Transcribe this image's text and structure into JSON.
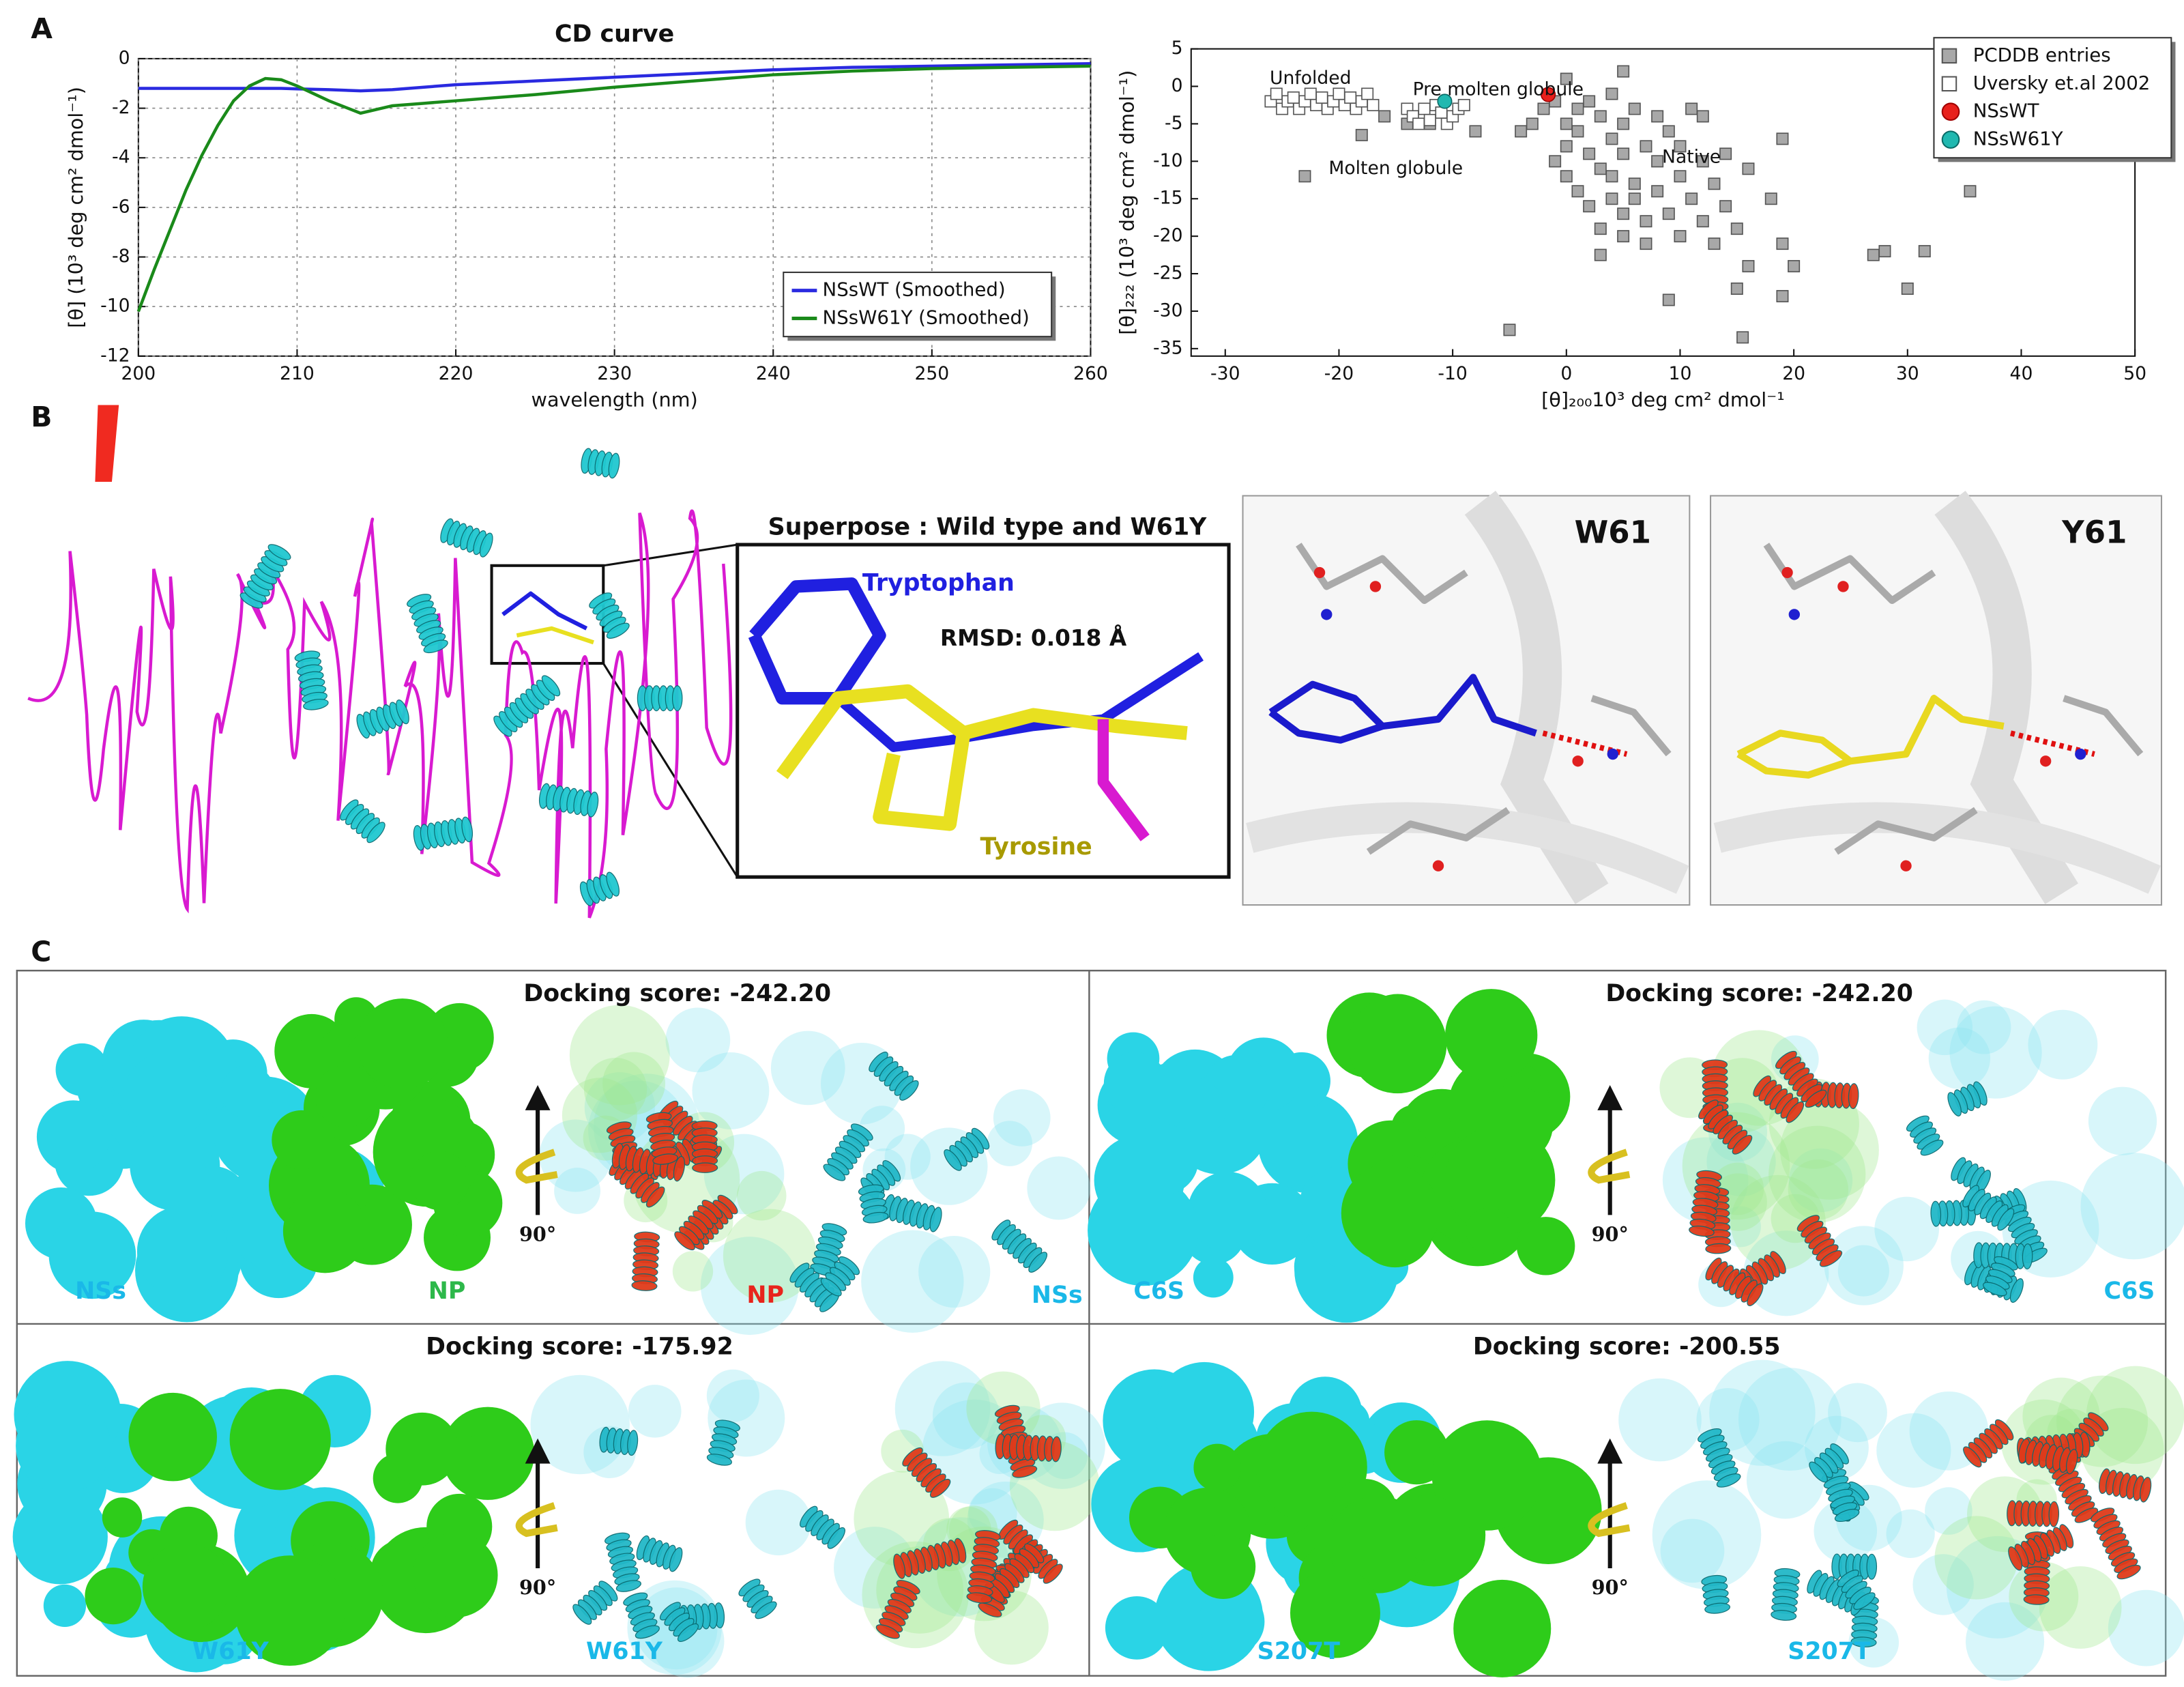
{
  "panel_labels": [
    "A",
    "B",
    "C"
  ],
  "chart_data": [
    {
      "type": "line",
      "title": "CD curve",
      "xlabel": "wavelength (nm)",
      "ylabel": "[θ] (10³ deg cm² dmol⁻¹)",
      "x": [
        200,
        201,
        202,
        203,
        204,
        205,
        206,
        207,
        208,
        209,
        210,
        212,
        214,
        216,
        218,
        220,
        225,
        230,
        235,
        240,
        245,
        250,
        255,
        260
      ],
      "series": [
        {
          "name": "NSsWT (Smoothed)",
          "color": "#2a2ae0",
          "values": [
            -1.2,
            -1.2,
            -1.2,
            -1.2,
            -1.2,
            -1.2,
            -1.2,
            -1.2,
            -1.2,
            -1.2,
            -1.22,
            -1.25,
            -1.3,
            -1.25,
            -1.15,
            -1.05,
            -0.9,
            -0.75,
            -0.6,
            -0.45,
            -0.35,
            -0.3,
            -0.25,
            -0.2
          ]
        },
        {
          "name": "NSsW61Y (Smoothed)",
          "color": "#1a8a1a",
          "values": [
            -10.2,
            -8.5,
            -6.9,
            -5.3,
            -3.9,
            -2.7,
            -1.7,
            -1.1,
            -0.8,
            -0.85,
            -1.1,
            -1.7,
            -2.2,
            -1.9,
            -1.8,
            -1.7,
            -1.45,
            -1.15,
            -0.9,
            -0.65,
            -0.5,
            -0.4,
            -0.35,
            -0.3
          ]
        }
      ],
      "xlim": [
        200,
        260
      ],
      "xticks": [
        200,
        210,
        220,
        230,
        240,
        250,
        260
      ],
      "ylim": [
        -12,
        0
      ],
      "yticks": [
        -12,
        -10,
        -8,
        -6,
        -4,
        -2,
        0
      ],
      "grid": true,
      "legend": "lower right"
    },
    {
      "type": "scatter",
      "xlabel": "[θ]₂₀₀10³ deg cm² dmol⁻¹",
      "ylabel": "[θ]₂₂₂ (10³ deg cm² dmol⁻¹)",
      "series": [
        {
          "name": "PCDDB entries",
          "color": "#a8a8a8",
          "edgecolor": "#555555",
          "marker": "square",
          "x": [
            -23,
            -18,
            -16,
            -14,
            -12,
            -8,
            -5,
            -4,
            -3,
            -2,
            -1,
            -1,
            0,
            0,
            0,
            0,
            1,
            1,
            1,
            2,
            2,
            2,
            3,
            3,
            3,
            3,
            4,
            4,
            4,
            4,
            5,
            5,
            5,
            5,
            5,
            6,
            6,
            6,
            7,
            7,
            7,
            8,
            8,
            8,
            9,
            9,
            9,
            10,
            10,
            10,
            11,
            11,
            12,
            12,
            12,
            13,
            13,
            14,
            14,
            15,
            15,
            15.5,
            16,
            16,
            18,
            19,
            19,
            19,
            20,
            27,
            28,
            30,
            31.5,
            35.5
          ],
          "y": [
            -12,
            -6.5,
            -4,
            -5,
            -5,
            -6,
            -32.5,
            -6,
            -5,
            -3,
            -2,
            -10,
            1,
            -5,
            -8,
            -12,
            -3,
            -6,
            -14,
            -2,
            -9,
            -16,
            -4,
            -11,
            -19,
            -22.5,
            -1,
            -7,
            -12,
            -15,
            2,
            -5,
            -9,
            -17,
            -20,
            -3,
            -13,
            -15,
            -8,
            -18,
            -21,
            -10,
            -14,
            -4,
            -28.5,
            -6,
            -17,
            -12,
            -20,
            -8,
            -3,
            -15,
            -4,
            -10,
            -18,
            -13,
            -21,
            -9,
            -16,
            -19,
            -27,
            -33.5,
            -11,
            -24,
            -15,
            -21,
            -28,
            -7,
            -24,
            -22.5,
            -22,
            -27,
            -22,
            -14
          ]
        },
        {
          "name": "Uversky et.al 2002",
          "color": "#ffffff",
          "edgecolor": "#555555",
          "marker": "square",
          "x": [
            -26,
            -25.5,
            -25,
            -24.5,
            -24,
            -23.5,
            -23,
            -22.5,
            -22,
            -21.5,
            -21,
            -20.5,
            -20,
            -19.5,
            -19,
            -18.5,
            -18,
            -17.5,
            -17,
            -14,
            -13.5,
            -13,
            -12.5,
            -12,
            -11.5,
            -11,
            -10.5,
            -10,
            -9.5,
            -9
          ],
          "y": [
            -2,
            -1,
            -3,
            -2,
            -1.5,
            -3,
            -2,
            -1,
            -2.5,
            -1.5,
            -3,
            -2,
            -1,
            -2.5,
            -1.5,
            -3,
            -2,
            -1,
            -2.5,
            -3,
            -4,
            -5,
            -3,
            -4.5,
            -2.5,
            -3.5,
            -5,
            -4,
            -3,
            -2.5
          ]
        },
        {
          "name": "NSsWT",
          "color": "#e8201c",
          "edgecolor": "#a00000",
          "marker": "circle",
          "x": [
            -1.6
          ],
          "y": [
            -1.1
          ]
        },
        {
          "name": "NSsW61Y",
          "color": "#20b8b0",
          "edgecolor": "#0a6a66",
          "marker": "circle",
          "x": [
            -10.7
          ],
          "y": [
            -2
          ]
        }
      ],
      "annotations": [
        {
          "text": "Unfolded",
          "x": -22.5,
          "y": 1
        },
        {
          "text": "Pre molten globule",
          "x": -6,
          "y": -0.5
        },
        {
          "text": "Molten globule",
          "x": -15,
          "y": -11
        },
        {
          "text": "Native",
          "x": 11,
          "y": -9.5
        }
      ],
      "xlim": [
        -33,
        50
      ],
      "xticks": [
        -30,
        -20,
        -10,
        0,
        10,
        20,
        30,
        40,
        50
      ],
      "ylim": [
        -36,
        5
      ],
      "yticks": [
        -35,
        -30,
        -25,
        -20,
        -15,
        -10,
        -5,
        0,
        5
      ],
      "grid": false,
      "legend": "upper right"
    }
  ],
  "structure_panel": {
    "superpose_title": "Superpose : Wild type and W61Y",
    "tryptophan": "Tryptophan",
    "rmsd": "RMSD: 0.018 Å",
    "tyrosine": "Tyrosine",
    "left_zoom": "W61",
    "right_zoom": "Y61"
  },
  "docking_panels": [
    {
      "score": "Docking score: -242.20",
      "rotation": "90°",
      "labels": [
        {
          "text": "NSs",
          "color": "#1ab8e8"
        },
        {
          "text": "NP",
          "color": "#2db84a"
        },
        {
          "text": "NP",
          "color": "#e8241c"
        },
        {
          "text": "NSs",
          "color": "#1ab8e8"
        }
      ]
    },
    {
      "score": "Docking score: -242.20",
      "rotation": "90°",
      "labels": [
        {
          "text": "C6S",
          "color": "#1ab8e8"
        },
        {
          "text": "C6S",
          "color": "#1ab8e8"
        }
      ]
    },
    {
      "score": "Docking score: -175.92",
      "rotation": "90°",
      "labels": [
        {
          "text": "W61Y",
          "color": "#1ab8e8"
        },
        {
          "text": "W61Y",
          "color": "#1ab8e8"
        }
      ]
    },
    {
      "score": "Docking score: -200.55",
      "rotation": "90°",
      "labels": [
        {
          "text": "S207T",
          "color": "#1ab8e8"
        },
        {
          "text": "S207T",
          "color": "#1ab8e8"
        }
      ]
    }
  ]
}
